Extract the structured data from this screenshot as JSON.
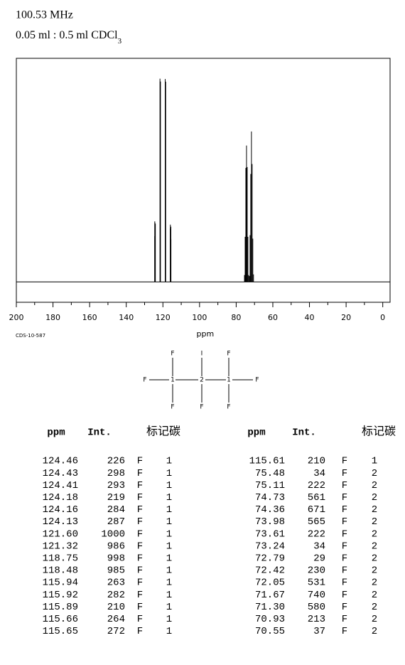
{
  "header": {
    "frequency": "100.53 MHz",
    "solvent": "0.05 ml : 0.5 ml CDCl",
    "solvent_subscript": "3"
  },
  "chart_data": {
    "type": "spectrum",
    "xlabel": "ppm",
    "code": "CDS-10-587",
    "x": [
      124.46,
      124.43,
      124.41,
      124.18,
      124.16,
      124.13,
      121.6,
      121.32,
      118.75,
      118.48,
      115.94,
      115.92,
      115.89,
      115.66,
      115.65,
      115.61,
      75.48,
      75.11,
      74.73,
      74.36,
      73.98,
      73.61,
      73.24,
      72.79,
      72.42,
      72.05,
      71.67,
      71.3,
      70.93,
      70.55
    ],
    "values": [
      226,
      298,
      293,
      219,
      284,
      287,
      1000,
      986,
      998,
      985,
      263,
      282,
      210,
      264,
      272,
      210,
      34,
      222,
      561,
      671,
      565,
      222,
      34,
      29,
      230,
      531,
      740,
      580,
      213,
      37
    ],
    "color": "#000000",
    "xlim": [
      200,
      -4
    ],
    "ylim": [
      -100,
      1100
    ],
    "xticks": [
      200,
      180,
      160,
      140,
      120,
      100,
      80,
      60,
      40,
      20,
      0
    ],
    "xminor": [
      190,
      170,
      150,
      130,
      110,
      90,
      70,
      50,
      30,
      10
    ]
  },
  "structure": {
    "atoms": [
      "F",
      "I",
      "F",
      "F",
      "1",
      "2",
      "1",
      "F",
      "F",
      "F",
      "F"
    ]
  },
  "table": {
    "headers": [
      "ppm",
      "Int.",
      "标记碳"
    ],
    "left": [
      [
        "124.46",
        "226",
        "F",
        "1"
      ],
      [
        "124.43",
        "298",
        "F",
        "1"
      ],
      [
        "124.41",
        "293",
        "F",
        "1"
      ],
      [
        "124.18",
        "219",
        "F",
        "1"
      ],
      [
        "124.16",
        "284",
        "F",
        "1"
      ],
      [
        "124.13",
        "287",
        "F",
        "1"
      ],
      [
        "121.60",
        "1000",
        "F",
        "1"
      ],
      [
        "121.32",
        "986",
        "F",
        "1"
      ],
      [
        "118.75",
        "998",
        "F",
        "1"
      ],
      [
        "118.48",
        "985",
        "F",
        "1"
      ],
      [
        "115.94",
        "263",
        "F",
        "1"
      ],
      [
        "115.92",
        "282",
        "F",
        "1"
      ],
      [
        "115.89",
        "210",
        "F",
        "1"
      ],
      [
        "115.66",
        "264",
        "F",
        "1"
      ],
      [
        "115.65",
        "272",
        "F",
        "1"
      ]
    ],
    "right": [
      [
        "115.61",
        "210",
        "F",
        "1"
      ],
      [
        "75.48",
        "34",
        "F",
        "2"
      ],
      [
        "75.11",
        "222",
        "F",
        "2"
      ],
      [
        "74.73",
        "561",
        "F",
        "2"
      ],
      [
        "74.36",
        "671",
        "F",
        "2"
      ],
      [
        "73.98",
        "565",
        "F",
        "2"
      ],
      [
        "73.61",
        "222",
        "F",
        "2"
      ],
      [
        "73.24",
        "34",
        "F",
        "2"
      ],
      [
        "72.79",
        "29",
        "F",
        "2"
      ],
      [
        "72.42",
        "230",
        "F",
        "2"
      ],
      [
        "72.05",
        "531",
        "F",
        "2"
      ],
      [
        "71.67",
        "740",
        "F",
        "2"
      ],
      [
        "71.30",
        "580",
        "F",
        "2"
      ],
      [
        "70.93",
        "213",
        "F",
        "2"
      ],
      [
        "70.55",
        "37",
        "F",
        "2"
      ]
    ]
  }
}
